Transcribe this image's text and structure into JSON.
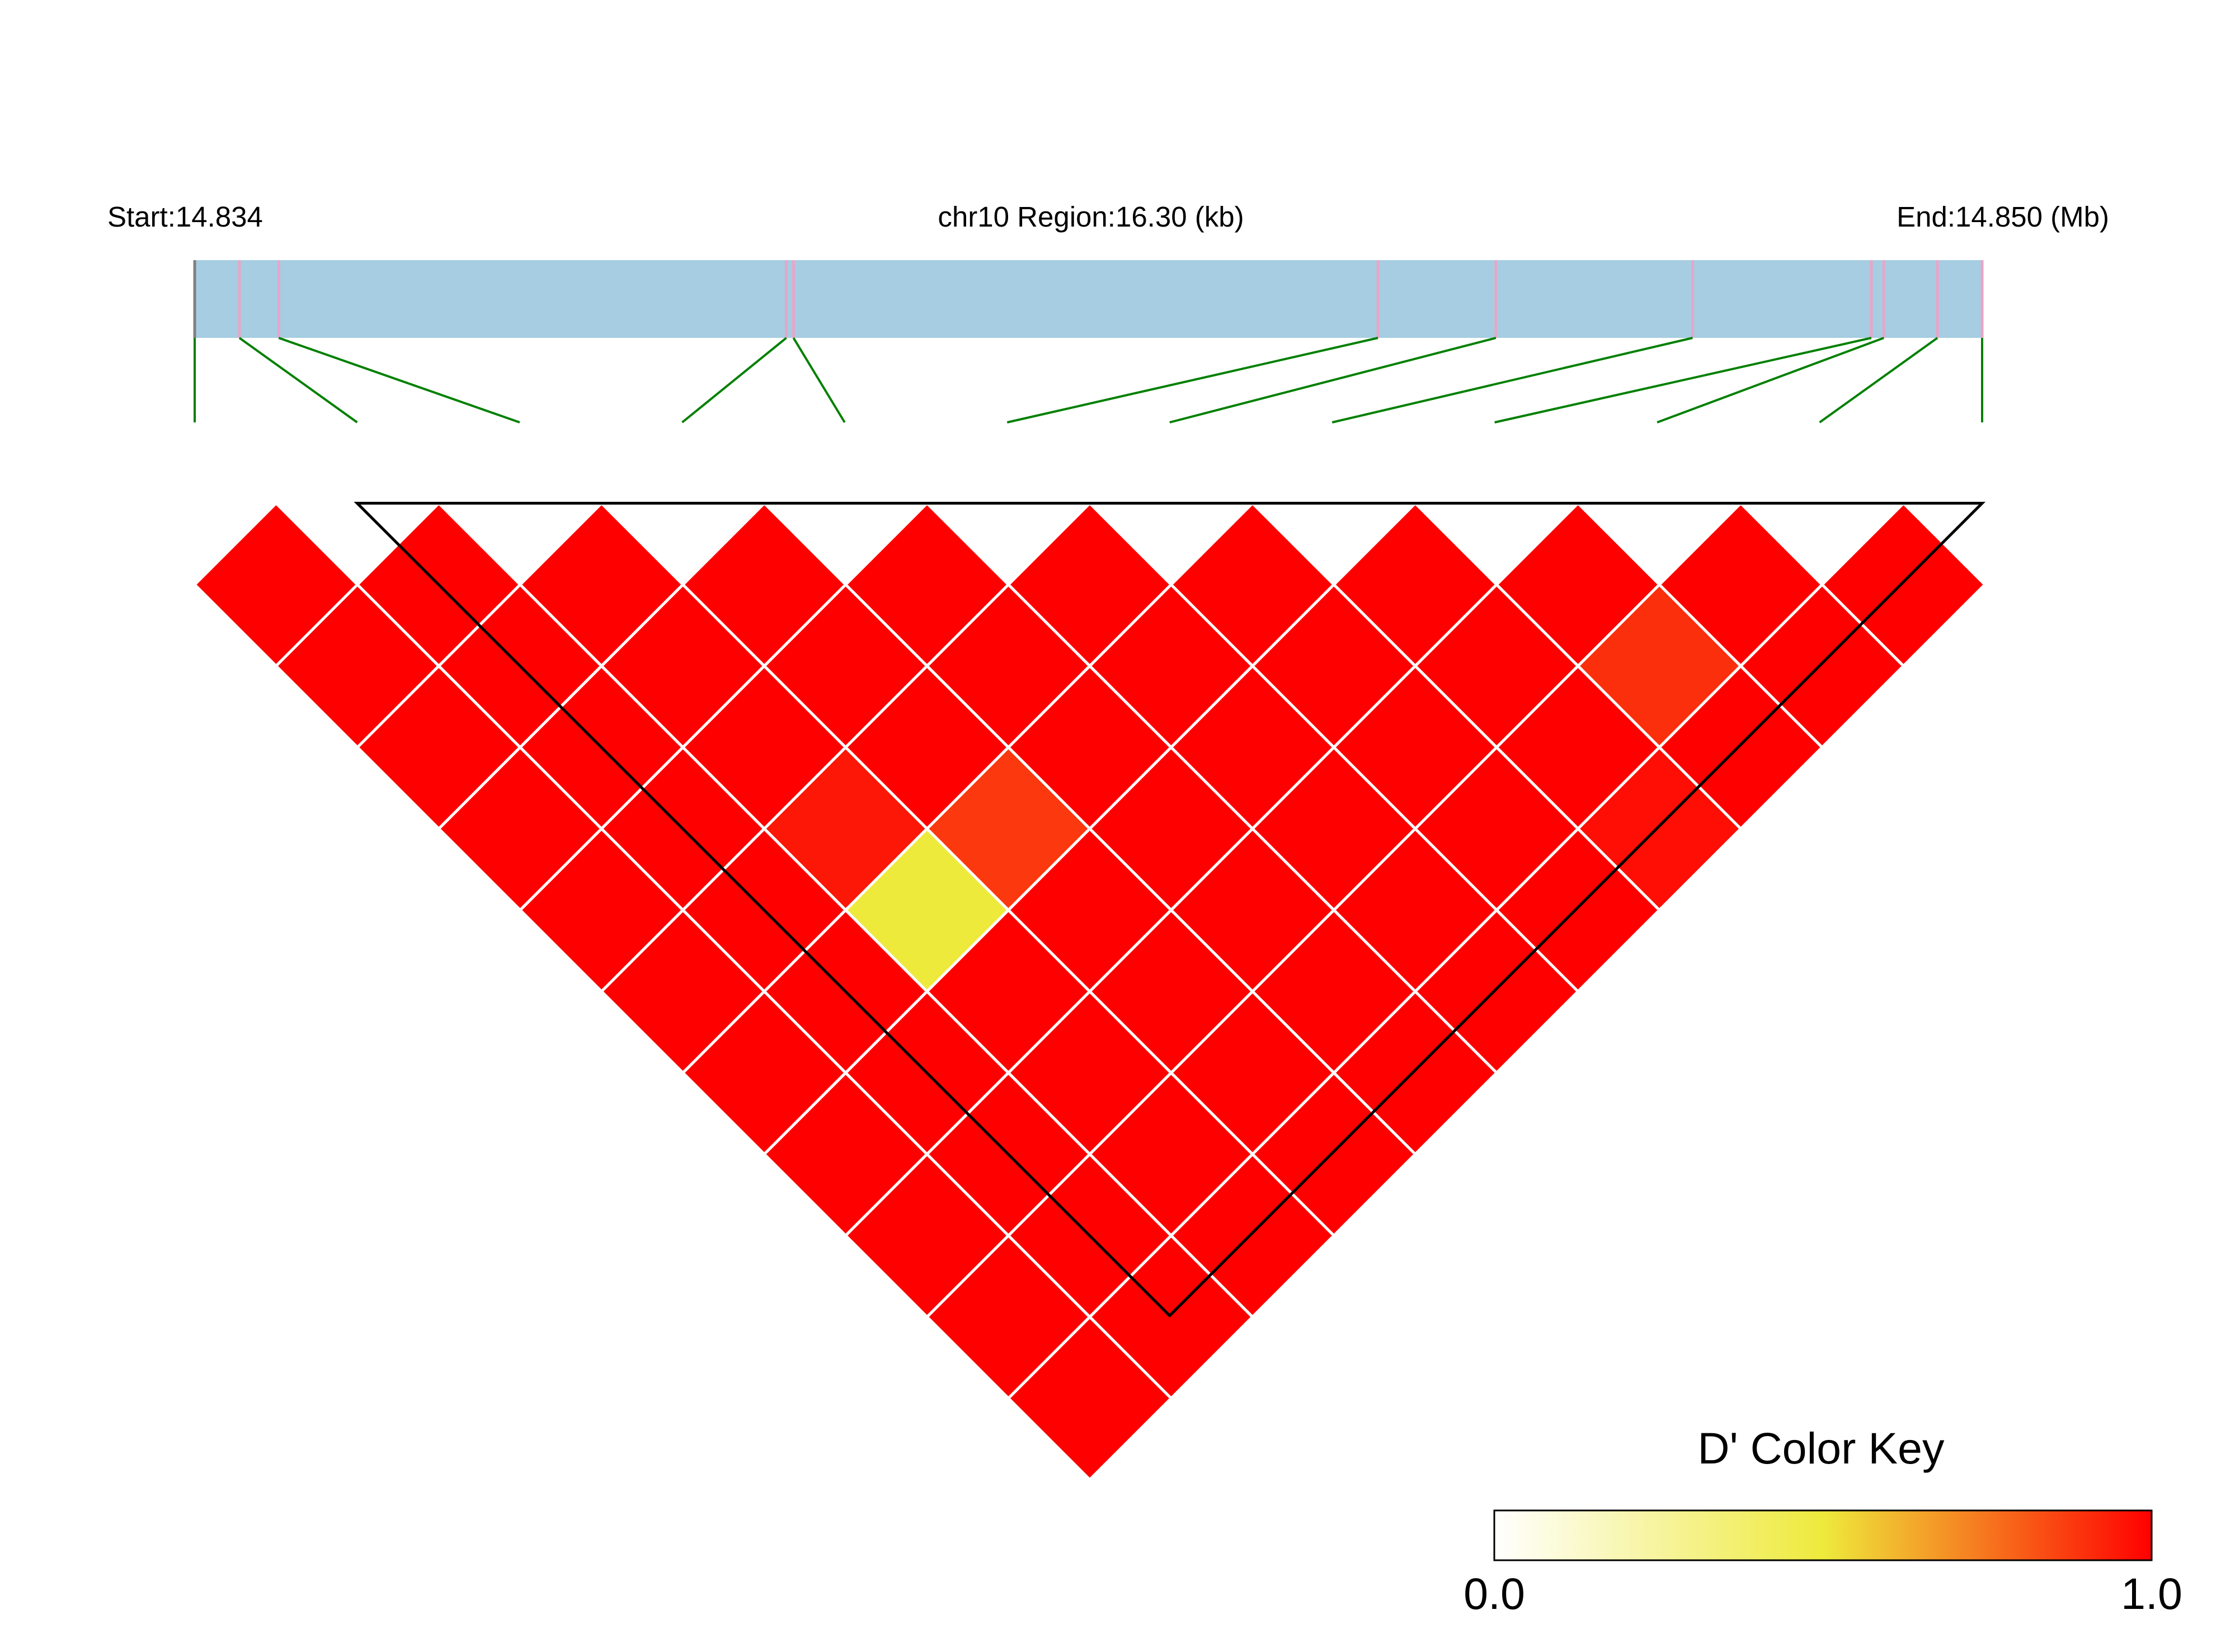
{
  "chart_data": {
    "type": "heatmap",
    "title": "",
    "region_label": "chr10 Region:16.30 (kb)",
    "start_label": "Start:14.834",
    "end_label": "End:14.850 (Mb)",
    "region": {
      "chrom": "chr10",
      "start_mb": 14.834,
      "end_mb": 14.85,
      "length_kb": 16.3
    },
    "snp_positions_fraction": [
      0.0,
      0.025,
      0.047,
      0.331,
      0.335,
      0.662,
      0.728,
      0.838,
      0.938,
      0.945,
      0.975,
      1.0
    ],
    "snp_marker_colors": {
      "first": "#808080",
      "other": "#e7a6c8"
    },
    "snp_count": 12,
    "block": {
      "first_snp_index": 1,
      "last_snp_index": 11
    },
    "dprime_note": "matrix[i][j] = D' between SNP i and SNP j (j > i)",
    "dprime_matrix": [
      [
        null,
        1,
        1,
        1,
        1,
        1,
        1,
        1,
        1,
        1,
        1,
        1
      ],
      [
        null,
        null,
        1,
        1,
        1,
        1,
        1,
        1,
        1,
        1,
        1,
        1
      ],
      [
        null,
        null,
        null,
        1,
        1,
        1,
        0.95,
        0.5,
        1,
        1,
        1,
        1
      ],
      [
        null,
        null,
        null,
        null,
        1,
        1,
        1,
        0.88,
        1,
        1,
        1,
        1
      ],
      [
        null,
        null,
        null,
        null,
        null,
        1,
        1,
        1,
        1,
        1,
        1,
        1
      ],
      [
        null,
        null,
        null,
        null,
        null,
        null,
        1,
        1,
        1,
        1,
        1,
        1
      ],
      [
        null,
        null,
        null,
        null,
        null,
        null,
        null,
        1,
        1,
        1,
        1,
        1
      ],
      [
        null,
        null,
        null,
        null,
        null,
        null,
        null,
        null,
        1,
        1,
        1,
        0.97
      ],
      [
        null,
        null,
        null,
        null,
        null,
        null,
        null,
        null,
        null,
        1,
        0.9,
        1
      ],
      [
        null,
        null,
        null,
        null,
        null,
        null,
        null,
        null,
        null,
        null,
        1,
        1
      ],
      [
        null,
        null,
        null,
        null,
        null,
        null,
        null,
        null,
        null,
        null,
        null,
        1
      ],
      [
        null,
        null,
        null,
        null,
        null,
        null,
        null,
        null,
        null,
        null,
        null,
        null
      ]
    ],
    "color_key": {
      "title": "D' Color Key",
      "min_label": "0.0",
      "max_label": "1.0",
      "range": [
        0,
        1
      ],
      "colors": [
        "#ffffff",
        "#eeea3c",
        "#ff0000"
      ]
    },
    "colors": {
      "region_bar": "#a6cde2",
      "connector": "#008000",
      "cell_border": "#ffffff",
      "block_outline": "#000000"
    }
  }
}
